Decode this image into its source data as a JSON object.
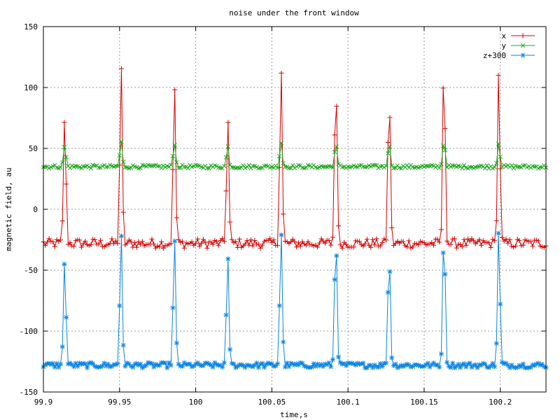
{
  "chart_data": {
    "type": "line",
    "title": "noise under the front window",
    "xlabel": "time,s",
    "ylabel": "magnetic field, au",
    "xlim": [
      99.9,
      100.23
    ],
    "ylim": [
      -150,
      150
    ],
    "grid": true,
    "legend_position": "top-right",
    "x_ticks": [
      {
        "value": 99.9,
        "label": "99.9"
      },
      {
        "value": 99.95,
        "label": "99.95"
      },
      {
        "value": 100,
        "label": "100"
      },
      {
        "value": 100.05,
        "label": "100.05"
      },
      {
        "value": 100.1,
        "label": "100.1"
      },
      {
        "value": 100.15,
        "label": "100.15"
      },
      {
        "value": 100.2,
        "label": "100.2"
      }
    ],
    "y_ticks": [
      {
        "value": 150,
        "label": "150"
      },
      {
        "value": 100,
        "label": "100"
      },
      {
        "value": 50,
        "label": "50"
      },
      {
        "value": 0,
        "label": "0"
      },
      {
        "value": -50,
        "label": "-50"
      },
      {
        "value": -100,
        "label": "-100"
      },
      {
        "value": -150,
        "label": "-150"
      }
    ],
    "series": [
      {
        "name": "x",
        "color": "#d40000",
        "marker": "plus",
        "baseline": -28,
        "peaks": [
          {
            "x": 99.914,
            "y": 78
          },
          {
            "x": 99.951,
            "y": 120
          },
          {
            "x": 99.986,
            "y": 105
          },
          {
            "x": 100.021,
            "y": 76
          },
          {
            "x": 100.056,
            "y": 119
          },
          {
            "x": 100.092,
            "y": 114
          },
          {
            "x": 100.127,
            "y": 101
          },
          {
            "x": 100.163,
            "y": 125
          },
          {
            "x": 100.199,
            "y": 116
          }
        ]
      },
      {
        "name": "y",
        "color": "#1ca71c",
        "marker": "cross",
        "baseline": 35,
        "peaks": [
          {
            "x": 99.914,
            "y": 52
          },
          {
            "x": 99.951,
            "y": 56
          },
          {
            "x": 99.986,
            "y": 55
          },
          {
            "x": 100.021,
            "y": 52
          },
          {
            "x": 100.056,
            "y": 56
          },
          {
            "x": 100.092,
            "y": 54
          },
          {
            "x": 100.127,
            "y": 54
          },
          {
            "x": 100.163,
            "y": 57
          },
          {
            "x": 100.199,
            "y": 56
          }
        ]
      },
      {
        "name": "z+300",
        "color": "#0a84e0",
        "marker": "star",
        "baseline": -128,
        "peaks": [
          {
            "x": 99.914,
            "y": -39
          },
          {
            "x": 99.951,
            "y": -16
          },
          {
            "x": 99.986,
            "y": -22
          },
          {
            "x": 100.021,
            "y": -38
          },
          {
            "x": 100.056,
            "y": -15
          },
          {
            "x": 100.092,
            "y": -16
          },
          {
            "x": 100.127,
            "y": -33
          },
          {
            "x": 100.163,
            "y": -12
          },
          {
            "x": 100.199,
            "y": -15
          }
        ]
      }
    ]
  }
}
